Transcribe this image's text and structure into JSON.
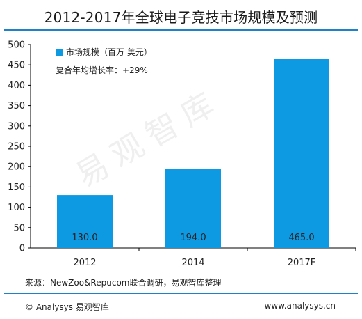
{
  "header": {
    "title": "2012-2017年全球电子竞技市场规模及预测"
  },
  "legend": {
    "label": "市场规模（百万 美元）"
  },
  "annotation": {
    "growth": "复合年均增长率：+29%"
  },
  "footer": {
    "source": "来源：NewZoo&Repucom联合调研，易观智库整理",
    "copyright": "© Analysys 易观智库",
    "website": "www.analysys.cn"
  },
  "watermark": "易观智库",
  "colors": {
    "bar": "#0e9ae3",
    "accent": "#1f82c8",
    "axis": "#000000"
  },
  "chart_data": {
    "type": "bar",
    "categories": [
      "2012",
      "2014",
      "2017F"
    ],
    "series": [
      {
        "name": "市场规模（百万 美元）",
        "values": [
          130.0,
          194.0,
          465.0
        ],
        "labels": [
          "130.0",
          "194.0",
          "465.0"
        ]
      }
    ],
    "ylim": [
      0,
      500
    ],
    "yticks": [
      0,
      50,
      100,
      150,
      200,
      250,
      300,
      350,
      400,
      450,
      500
    ],
    "grid": false,
    "legend_position": "top-left"
  }
}
